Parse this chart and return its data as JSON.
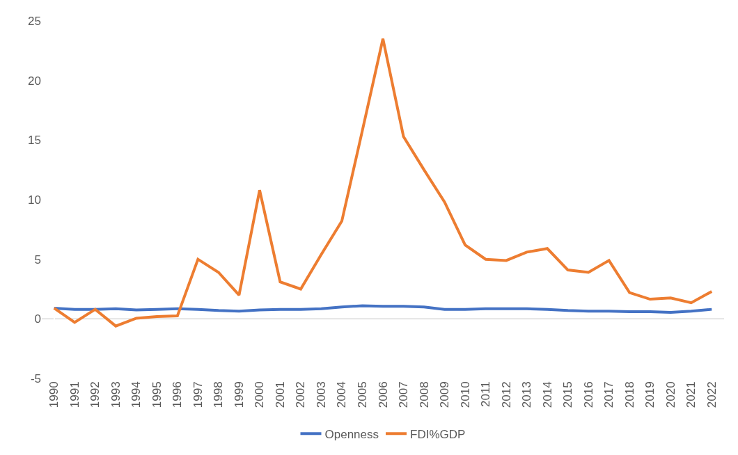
{
  "chart_data": {
    "type": "line",
    "categories": [
      "1990",
      "1991",
      "1992",
      "1993",
      "1994",
      "1995",
      "1996",
      "1997",
      "1998",
      "1999",
      "2000",
      "2001",
      "2002",
      "2003",
      "2004",
      "2005",
      "2006",
      "2007",
      "2008",
      "2009",
      "2010",
      "2011",
      "2012",
      "2013",
      "2014",
      "2015",
      "2016",
      "2017",
      "2018",
      "2019",
      "2020",
      "2021",
      "2022"
    ],
    "series": [
      {
        "name": "Openness",
        "color": "#4472c4",
        "values": [
          0.9,
          0.8,
          0.8,
          0.85,
          0.75,
          0.8,
          0.85,
          0.8,
          0.7,
          0.65,
          0.75,
          0.8,
          0.8,
          0.85,
          1.0,
          1.1,
          1.05,
          1.05,
          1.0,
          0.8,
          0.8,
          0.85,
          0.85,
          0.85,
          0.8,
          0.7,
          0.65,
          0.65,
          0.6,
          0.6,
          0.55,
          0.65,
          0.8
        ]
      },
      {
        "name": "FDI%GDP",
        "color": "#ed7d31",
        "values": [
          0.9,
          -0.3,
          0.8,
          -0.6,
          0.05,
          0.2,
          0.25,
          5.0,
          3.9,
          2.0,
          10.8,
          3.1,
          2.5,
          5.4,
          8.2,
          15.8,
          23.5,
          15.3,
          12.5,
          9.8,
          6.2,
          5.0,
          4.9,
          5.6,
          5.9,
          4.1,
          3.9,
          4.9,
          2.2,
          1.65,
          1.75,
          1.35,
          2.3
        ]
      }
    ],
    "ylim": [
      -5,
      25
    ],
    "yticks": [
      -5,
      0,
      5,
      10,
      15,
      20,
      25
    ],
    "ref_lines": [
      {
        "axis": "y",
        "value": 0,
        "color": "#d9d9d9"
      }
    ],
    "grid": false,
    "legend": "bottom",
    "marker": "none",
    "line_style": "solid"
  }
}
